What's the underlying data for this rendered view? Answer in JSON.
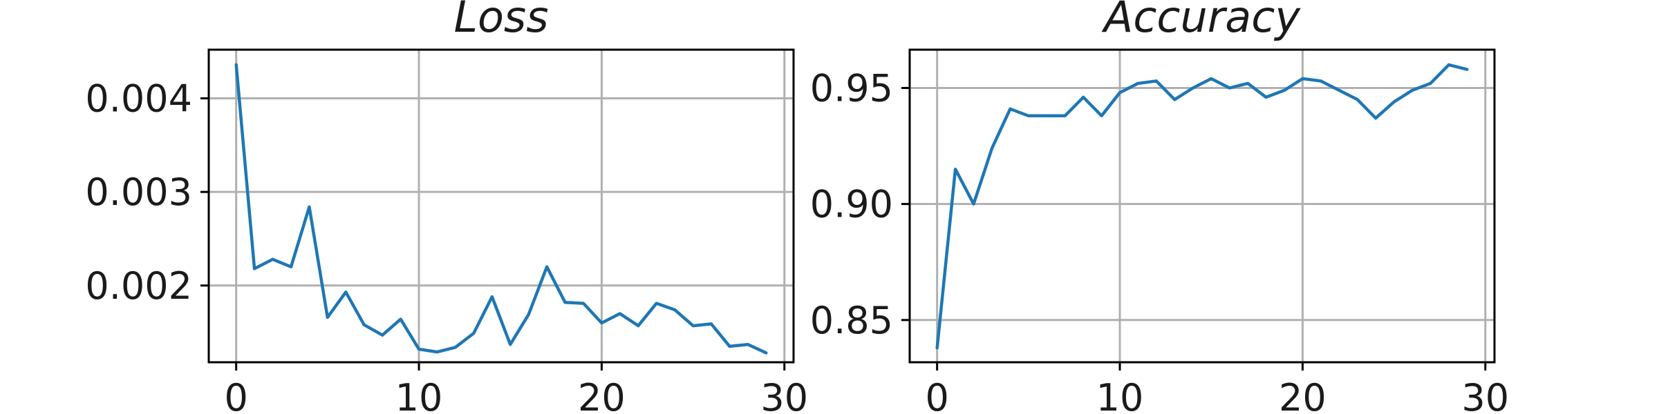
{
  "chart_data": [
    {
      "type": "line",
      "title": "Loss",
      "xlabel": "",
      "ylabel": "",
      "xlim": [
        -1.5,
        30.5
      ],
      "ylim": [
        0.00118,
        0.00452
      ],
      "xticks": [
        0,
        10,
        20,
        30
      ],
      "xtick_labels": [
        "0",
        "10",
        "20",
        "30"
      ],
      "yticks": [
        0.002,
        0.003,
        0.004
      ],
      "ytick_labels": [
        "0.002",
        "0.003",
        "0.004"
      ],
      "grid": true,
      "color": "#1f77b4",
      "x": [
        0,
        1,
        2,
        3,
        4,
        5,
        6,
        7,
        8,
        9,
        10,
        11,
        12,
        13,
        14,
        15,
        16,
        17,
        18,
        19,
        20,
        21,
        22,
        23,
        24,
        25,
        26,
        27,
        28,
        29
      ],
      "series": [
        {
          "values": [
            0.00436,
            0.00218,
            0.00228,
            0.0022,
            0.00284,
            0.00166,
            0.00193,
            0.00158,
            0.00147,
            0.00164,
            0.00132,
            0.00129,
            0.00134,
            0.00149,
            0.00188,
            0.00137,
            0.00169,
            0.0022,
            0.00182,
            0.00181,
            0.0016,
            0.0017,
            0.00157,
            0.00181,
            0.00174,
            0.00157,
            0.00159,
            0.00135,
            0.00137,
            0.00128
          ]
        }
      ]
    },
    {
      "type": "line",
      "title": "Accuracy",
      "xlabel": "",
      "ylabel": "",
      "xlim": [
        -1.5,
        30.5
      ],
      "ylim": [
        0.8318,
        0.9665
      ],
      "xticks": [
        0,
        10,
        20,
        30
      ],
      "xtick_labels": [
        "0",
        "10",
        "20",
        "30"
      ],
      "yticks": [
        0.85,
        0.9,
        0.95
      ],
      "ytick_labels": [
        "0.85",
        "0.90",
        "0.95"
      ],
      "grid": true,
      "color": "#1f77b4",
      "x": [
        0,
        1,
        2,
        3,
        4,
        5,
        6,
        7,
        8,
        9,
        10,
        11,
        12,
        13,
        14,
        15,
        16,
        17,
        18,
        19,
        20,
        21,
        22,
        23,
        24,
        25,
        26,
        27,
        28,
        29
      ],
      "series": [
        {
          "values": [
            0.838,
            0.915,
            0.9,
            0.924,
            0.941,
            0.938,
            0.938,
            0.938,
            0.946,
            0.938,
            0.948,
            0.952,
            0.953,
            0.945,
            0.95,
            0.954,
            0.95,
            0.952,
            0.946,
            0.949,
            0.954,
            0.953,
            0.949,
            0.945,
            0.937,
            0.944,
            0.949,
            0.952,
            0.96,
            0.958
          ]
        }
      ]
    }
  ]
}
